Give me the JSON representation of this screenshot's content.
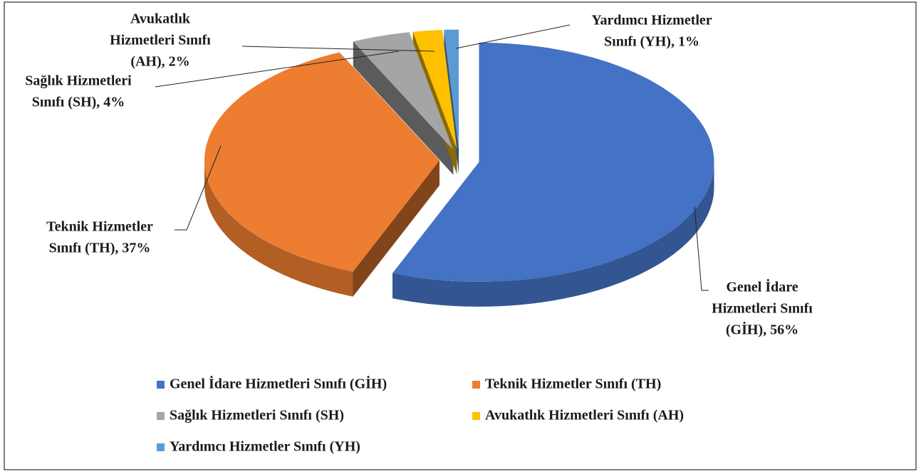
{
  "chart_data": {
    "type": "pie",
    "categories": [
      "Genel İdare Hizmetleri Sınıfı (GİH)",
      "Teknik Hizmetler Sınıfı (TH)",
      "Sağlık Hizmetleri Sınıfı (SH)",
      "Avukatlık Hizmetleri Sınıfı (AH)",
      "Yardımcı Hizmetler Sınıfı (YH)"
    ],
    "values": [
      56,
      37,
      4,
      2,
      1
    ],
    "value_labels": [
      [
        "Genel İdare",
        "Hizmetleri Sınıfı",
        "(GİH), 56%"
      ],
      [
        "Teknik Hizmetler",
        "Sınıfı (TH), 37%"
      ],
      [
        "Sağlık Hizmetleri",
        "Sınıfı (SH), 4%"
      ],
      [
        "Avukatlık",
        "Hizmetleri Sınıfı",
        "(AH), 2%"
      ],
      [
        "Yardımcı Hizmetler",
        "Sınıfı (YH), 1%"
      ]
    ],
    "colors": [
      "#4472c4",
      "#ed7d31",
      "#a5a5a5",
      "#ffc000",
      "#5b9bd5"
    ],
    "legend": "bottom"
  }
}
